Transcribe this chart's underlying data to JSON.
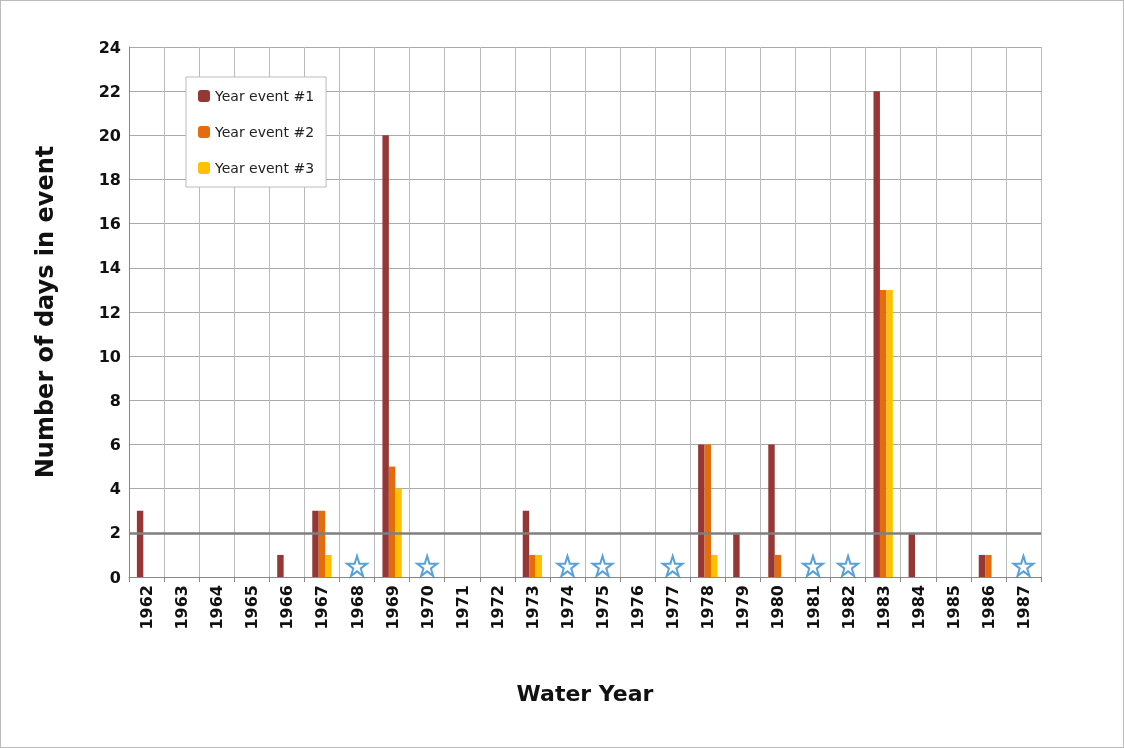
{
  "chart_data": {
    "type": "bar",
    "xlabel": "Water Year",
    "ylabel": "Number of days in event",
    "categories": [
      "1962",
      "1963",
      "1964",
      "1965",
      "1966",
      "1967",
      "1968",
      "1969",
      "1970",
      "1971",
      "1972",
      "1973",
      "1974",
      "1975",
      "1976",
      "1977",
      "1978",
      "1979",
      "1980",
      "1981",
      "1982",
      "1983",
      "1984",
      "1985",
      "1986",
      "1987"
    ],
    "series": [
      {
        "name": "Year event #1",
        "color": "#953735",
        "values": [
          3,
          null,
          null,
          null,
          1,
          3,
          null,
          20,
          null,
          null,
          null,
          3,
          null,
          null,
          null,
          null,
          6,
          2,
          6,
          null,
          null,
          22,
          2,
          null,
          1,
          null
        ]
      },
      {
        "name": "Year event #2",
        "color": "#e46c0a",
        "values": [
          null,
          null,
          null,
          null,
          null,
          3,
          null,
          5,
          null,
          null,
          null,
          1,
          null,
          null,
          null,
          null,
          6,
          null,
          1,
          null,
          null,
          13,
          null,
          null,
          1,
          null
        ]
      },
      {
        "name": "Year event #3",
        "color": "#ffc000",
        "values": [
          null,
          null,
          null,
          null,
          null,
          1,
          null,
          4,
          null,
          null,
          null,
          1,
          null,
          null,
          null,
          null,
          1,
          null,
          null,
          null,
          null,
          13,
          null,
          null,
          null,
          null
        ]
      },
      {
        "type": "scatter",
        "marker": "star",
        "color": "#2e8bd0",
        "values": [
          null,
          null,
          null,
          null,
          null,
          null,
          0.5,
          null,
          0.5,
          null,
          null,
          null,
          0.5,
          0.5,
          null,
          0.5,
          null,
          null,
          null,
          0.5,
          0.5,
          null,
          null,
          null,
          null,
          0.5
        ]
      }
    ],
    "ylim": [
      0,
      24
    ],
    "yticks": [
      0,
      2,
      4,
      6,
      8,
      10,
      12,
      14,
      16,
      18,
      20,
      22,
      24
    ],
    "grid": true,
    "legend": "top left",
    "ref_lines": [
      {
        "axis": "y",
        "value": 2,
        "color": "#7f7f7f"
      }
    ]
  }
}
